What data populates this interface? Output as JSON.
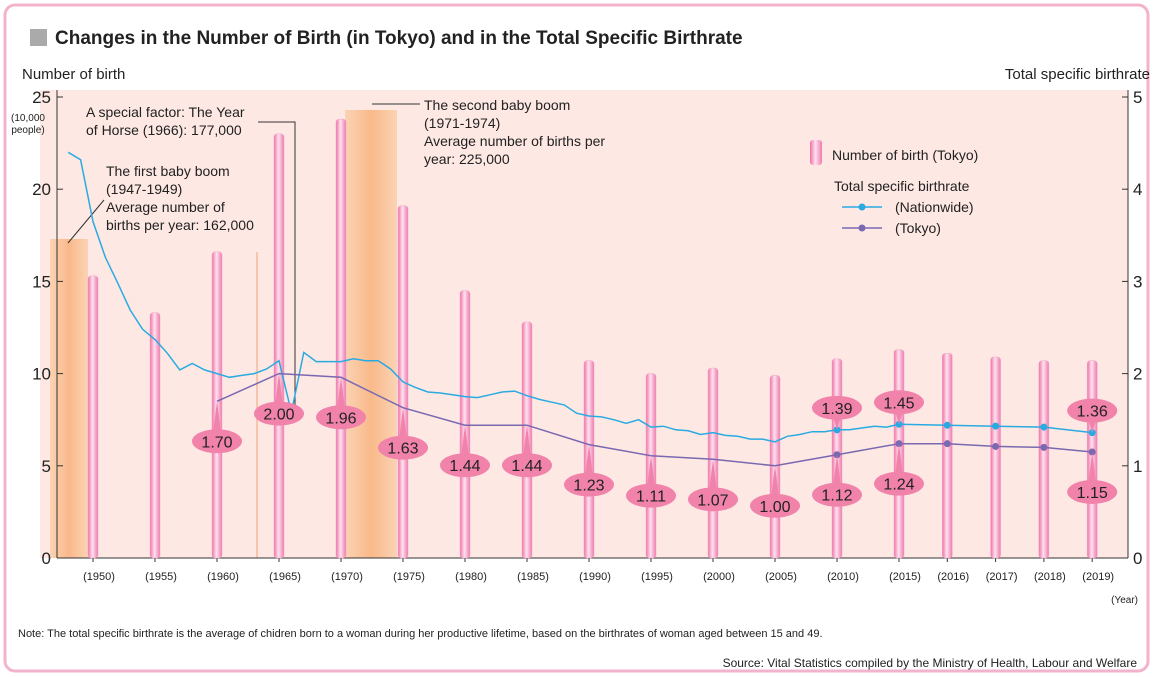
{
  "chart_data": {
    "type": "bar_line",
    "title": "Changes in the Number of Birth (in Tokyo) and in the Total Specific Birthrate",
    "y_label": "Number of birth",
    "y_unit": [
      "(10,000",
      "people)"
    ],
    "y2_label": "Total specific birthrate",
    "x_label": "(Year)",
    "ylim": [
      0,
      25
    ],
    "yticks": [
      0,
      5,
      10,
      15,
      20,
      25
    ],
    "y2lim": [
      0,
      5
    ],
    "y2ticks": [
      0,
      1,
      2,
      3,
      4,
      5
    ],
    "xticks": [
      {
        "value": 1950,
        "label": "(1950)"
      },
      {
        "value": 1955,
        "label": "(1955)"
      },
      {
        "value": 1960,
        "label": "(1960)"
      },
      {
        "value": 1965,
        "label": "(1965)"
      },
      {
        "value": 1970,
        "label": "(1970)"
      },
      {
        "value": 1975,
        "label": "(1975)"
      },
      {
        "value": 1980,
        "label": "(1980)"
      },
      {
        "value": 1985,
        "label": "(1985)"
      },
      {
        "value": 1990,
        "label": "(1990)"
      },
      {
        "value": 1995,
        "label": "(1995)"
      },
      {
        "value": 2000,
        "label": "(2000)"
      },
      {
        "value": 2005,
        "label": "(2005)"
      },
      {
        "value": 2010,
        "label": "(2010)"
      },
      {
        "value": 2015,
        "label": "(2015)"
      },
      {
        "value": 2016,
        "label": "(2016)"
      },
      {
        "value": 2017,
        "label": "(2017)"
      },
      {
        "value": 2018,
        "label": "(2018)"
      },
      {
        "value": 2019,
        "label": "(2019)"
      }
    ],
    "legend_title": "Total specific birthrate",
    "series": [
      {
        "name": "Number of birth (Tokyo)",
        "kind": "bar",
        "color": "#f4a3c6",
        "x": [
          1950,
          1955,
          1960,
          1965,
          1970,
          1975,
          1980,
          1985,
          1990,
          1995,
          2000,
          2005,
          2010,
          2015,
          2016,
          2017,
          2018,
          2019
        ],
        "values": [
          15.3,
          13.3,
          16.6,
          23.0,
          23.8,
          19.1,
          14.5,
          12.8,
          10.7,
          10.0,
          10.3,
          9.9,
          10.8,
          11.3,
          11.1,
          10.9,
          10.7,
          10.7
        ]
      },
      {
        "name": "(Nationwide)",
        "kind": "line",
        "axis": "y2",
        "color": "#29abe2",
        "x": [
          1948,
          1949,
          1950,
          1951,
          1952,
          1953,
          1954,
          1955,
          1956,
          1957,
          1958,
          1959,
          1960,
          1961,
          1962,
          1963,
          1964,
          1965,
          1966,
          1967,
          1968,
          1969,
          1970,
          1971,
          1972,
          1973,
          1974,
          1975,
          1976,
          1977,
          1978,
          1979,
          1980,
          1981,
          1982,
          1983,
          1984,
          1985,
          1986,
          1987,
          1988,
          1989,
          1990,
          1991,
          1992,
          1993,
          1994,
          1995,
          1996,
          1997,
          1998,
          1999,
          2000,
          2001,
          2002,
          2003,
          2004,
          2005,
          2006,
          2007,
          2008,
          2009,
          2010,
          2011,
          2012,
          2013,
          2014,
          2015,
          2016,
          2017,
          2018,
          2019
        ],
        "values": [
          4.4,
          4.32,
          3.65,
          3.26,
          2.98,
          2.69,
          2.48,
          2.37,
          2.22,
          2.04,
          2.11,
          2.04,
          2.0,
          1.96,
          1.98,
          2.0,
          2.05,
          2.14,
          1.58,
          2.23,
          2.13,
          2.13,
          2.13,
          2.16,
          2.14,
          2.14,
          2.05,
          1.91,
          1.85,
          1.8,
          1.79,
          1.77,
          1.75,
          1.74,
          1.77,
          1.8,
          1.81,
          1.76,
          1.72,
          1.69,
          1.66,
          1.57,
          1.54,
          1.53,
          1.5,
          1.46,
          1.5,
          1.42,
          1.43,
          1.39,
          1.38,
          1.34,
          1.36,
          1.33,
          1.32,
          1.29,
          1.29,
          1.26,
          1.32,
          1.34,
          1.37,
          1.37,
          1.39,
          1.39,
          1.41,
          1.43,
          1.42,
          1.45,
          1.44,
          1.43,
          1.42,
          1.36
        ],
        "value_labels": [
          null,
          null,
          null,
          null,
          null,
          null,
          null,
          null,
          null,
          null,
          null,
          null,
          null,
          null,
          null,
          null,
          null,
          null,
          null,
          null,
          null,
          null,
          null,
          null,
          null,
          null,
          null,
          null,
          null,
          null,
          null,
          null,
          null,
          null,
          null,
          null,
          null,
          null,
          null,
          null,
          null,
          null,
          null,
          null,
          null,
          null,
          null,
          null,
          null,
          null,
          null,
          null,
          null,
          null,
          null,
          null,
          null,
          null,
          null,
          null,
          null,
          null,
          "1.39",
          null,
          null,
          null,
          null,
          "1.45",
          null,
          null,
          null,
          "1.36"
        ]
      },
      {
        "name": "(Tokyo)",
        "kind": "line",
        "axis": "y2",
        "color": "#7a68b1",
        "x": [
          1960,
          1965,
          1970,
          1975,
          1980,
          1985,
          1990,
          1995,
          2000,
          2005,
          2010,
          2015,
          2016,
          2017,
          2018,
          2019
        ],
        "values": [
          1.7,
          2.0,
          1.96,
          1.63,
          1.44,
          1.44,
          1.23,
          1.11,
          1.07,
          1.0,
          1.12,
          1.24,
          1.24,
          1.21,
          1.2,
          1.15
        ],
        "value_labels": [
          "1.70",
          "2.00",
          "1.96",
          "1.63",
          "1.44",
          "1.44",
          "1.23",
          "1.11",
          "1.07",
          "1.00",
          "1.12",
          "1.24",
          null,
          null,
          null,
          "1.15"
        ]
      }
    ],
    "annotations": [
      {
        "lines": [
          "The first baby boom",
          "(1947-1949)",
          "Average number of",
          "births per year: 162,000"
        ]
      },
      {
        "lines": [
          "A special factor: The Year",
          "of Horse (1966): 177,000"
        ]
      },
      {
        "lines": [
          "The second baby boom",
          "(1971-1974)",
          "Average number of births per",
          "year: 225,000"
        ]
      }
    ],
    "note": "Note: The total specific birthrate is the average of chidren born to a woman during her productive lifetime, based on the birthrates of woman aged between 15 and 49.",
    "source": "Source: Vital Statistics compiled by the Ministry of Health, Labour and Welfare"
  }
}
